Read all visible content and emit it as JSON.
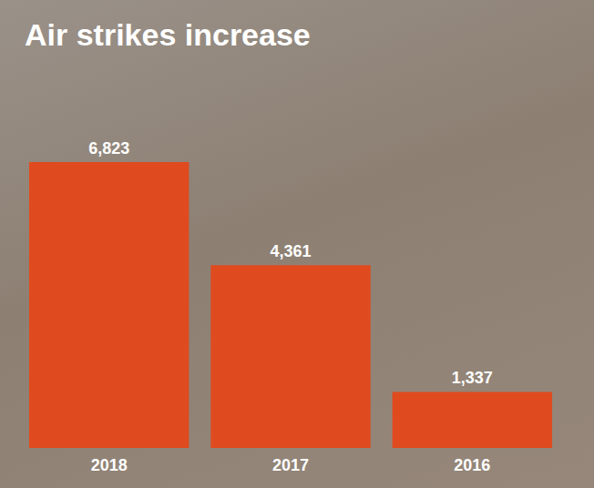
{
  "chart_data": {
    "type": "bar",
    "title": "Air strikes increase",
    "categories": [
      "2018",
      "2017",
      "2016"
    ],
    "values": [
      6823,
      4361,
      1337
    ],
    "value_labels": [
      "6,823",
      "4,361",
      "1,337"
    ],
    "color": "#e04a1f",
    "ylim": [
      0,
      6823
    ],
    "data_labels": true,
    "tick_labels": "x",
    "grid": false
  }
}
